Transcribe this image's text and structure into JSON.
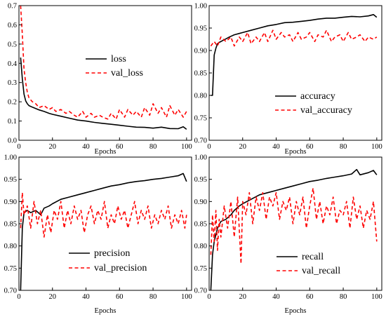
{
  "chart_data": [
    {
      "type": "line",
      "title": "",
      "xlabel": "Epochs",
      "ylabel": "",
      "xlim": [
        0,
        103
      ],
      "ylim": [
        0,
        0.7
      ],
      "xticks": [
        "0",
        "20",
        "40",
        "60",
        "80",
        "100"
      ],
      "yticks": [
        "0.0",
        "0.1",
        "0.2",
        "0.3",
        "0.4",
        "0.5",
        "0.6",
        "0.7"
      ],
      "grid": false,
      "legend_position": "center-right",
      "colors": {
        "train": "#000000",
        "val": "#ff0000"
      },
      "series": [
        {
          "name": "loss",
          "style": "solid",
          "x": [
            1,
            2,
            3,
            4,
            5,
            6,
            8,
            10,
            12,
            15,
            18,
            20,
            25,
            30,
            35,
            40,
            45,
            50,
            55,
            60,
            65,
            70,
            75,
            80,
            85,
            90,
            95,
            98,
            100
          ],
          "values": [
            0.43,
            0.32,
            0.24,
            0.205,
            0.19,
            0.18,
            0.172,
            0.165,
            0.158,
            0.15,
            0.14,
            0.135,
            0.125,
            0.115,
            0.105,
            0.1,
            0.093,
            0.088,
            0.083,
            0.078,
            0.073,
            0.068,
            0.067,
            0.063,
            0.068,
            0.061,
            0.06,
            0.07,
            0.057
          ]
        },
        {
          "name": "val_loss",
          "style": "dashed",
          "x": [
            1,
            2,
            3,
            4,
            5,
            6,
            8,
            10,
            12,
            15,
            18,
            20,
            22,
            25,
            28,
            30,
            33,
            35,
            38,
            40,
            43,
            45,
            48,
            50,
            53,
            55,
            58,
            60,
            63,
            65,
            68,
            70,
            73,
            75,
            78,
            80,
            83,
            85,
            88,
            90,
            93,
            95,
            98,
            100
          ],
          "values": [
            0.7,
            0.55,
            0.37,
            0.3,
            0.25,
            0.22,
            0.2,
            0.19,
            0.17,
            0.18,
            0.16,
            0.17,
            0.15,
            0.16,
            0.14,
            0.15,
            0.13,
            0.12,
            0.15,
            0.12,
            0.14,
            0.12,
            0.13,
            0.12,
            0.11,
            0.14,
            0.11,
            0.16,
            0.12,
            0.16,
            0.13,
            0.15,
            0.12,
            0.17,
            0.13,
            0.19,
            0.14,
            0.17,
            0.12,
            0.18,
            0.13,
            0.16,
            0.12,
            0.15
          ]
        }
      ]
    },
    {
      "type": "line",
      "title": "",
      "xlabel": "Epochs",
      "ylabel": "",
      "xlim": [
        0,
        103
      ],
      "ylim": [
        0.7,
        1.0
      ],
      "xticks": [
        "0",
        "20",
        "40",
        "60",
        "80",
        "100"
      ],
      "yticks": [
        "0.70",
        "0.75",
        "0.80",
        "0.85",
        "0.90",
        "0.95",
        "1.00"
      ],
      "grid": false,
      "legend_position": "bottom-right",
      "colors": {
        "train": "#000000",
        "val": "#ff0000"
      },
      "series": [
        {
          "name": "accuracy",
          "style": "solid",
          "x": [
            1,
            2,
            3,
            4,
            5,
            6,
            8,
            10,
            12,
            15,
            18,
            20,
            25,
            30,
            35,
            40,
            45,
            50,
            55,
            60,
            65,
            70,
            75,
            80,
            85,
            90,
            95,
            98,
            100
          ],
          "values": [
            0.8,
            0.8,
            0.89,
            0.905,
            0.915,
            0.918,
            0.922,
            0.926,
            0.93,
            0.935,
            0.938,
            0.94,
            0.945,
            0.95,
            0.955,
            0.958,
            0.962,
            0.963,
            0.965,
            0.967,
            0.97,
            0.972,
            0.972,
            0.974,
            0.976,
            0.975,
            0.977,
            0.98,
            0.974
          ]
        },
        {
          "name": "val_accuracy",
          "style": "dashed",
          "x": [
            1,
            2,
            3,
            5,
            7,
            10,
            13,
            15,
            18,
            20,
            23,
            25,
            28,
            30,
            33,
            35,
            38,
            40,
            43,
            45,
            48,
            50,
            53,
            55,
            58,
            60,
            63,
            65,
            68,
            70,
            73,
            75,
            78,
            80,
            83,
            85,
            88,
            90,
            93,
            95,
            98,
            100
          ],
          "values": [
            0.91,
            0.915,
            0.92,
            0.91,
            0.93,
            0.92,
            0.93,
            0.91,
            0.93,
            0.92,
            0.94,
            0.915,
            0.93,
            0.92,
            0.94,
            0.92,
            0.945,
            0.925,
            0.94,
            0.93,
            0.935,
            0.92,
            0.94,
            0.925,
            0.93,
            0.94,
            0.92,
            0.935,
            0.93,
            0.945,
            0.92,
            0.93,
            0.935,
            0.92,
            0.94,
            0.925,
            0.93,
            0.935,
            0.92,
            0.93,
            0.925,
            0.93
          ]
        }
      ]
    },
    {
      "type": "line",
      "title": "",
      "xlabel": "Epochs",
      "ylabel": "",
      "xlim": [
        0,
        103
      ],
      "ylim": [
        0.7,
        1.0
      ],
      "xticks": [
        "0",
        "20",
        "40",
        "60",
        "80",
        "100"
      ],
      "yticks": [
        "0.70",
        "0.75",
        "0.80",
        "0.85",
        "0.90",
        "0.95",
        "1.00"
      ],
      "grid": false,
      "legend_position": "bottom-right",
      "colors": {
        "train": "#000000",
        "val": "#ff0000"
      },
      "series": [
        {
          "name": "precision",
          "style": "solid",
          "x": [
            1,
            2,
            3,
            5,
            7,
            10,
            13,
            15,
            18,
            20,
            25,
            30,
            35,
            40,
            45,
            50,
            55,
            60,
            65,
            70,
            75,
            80,
            85,
            90,
            95,
            98,
            100
          ],
          "values": [
            0.7,
            0.84,
            0.875,
            0.88,
            0.875,
            0.88,
            0.87,
            0.885,
            0.89,
            0.895,
            0.905,
            0.91,
            0.915,
            0.92,
            0.925,
            0.93,
            0.935,
            0.938,
            0.942,
            0.945,
            0.947,
            0.95,
            0.952,
            0.955,
            0.958,
            0.963,
            0.945
          ]
        },
        {
          "name": "val_precision",
          "style": "dashed",
          "x": [
            1,
            2,
            3,
            5,
            7,
            9,
            11,
            13,
            15,
            17,
            19,
            21,
            23,
            25,
            27,
            29,
            31,
            33,
            35,
            37,
            39,
            41,
            43,
            45,
            47,
            49,
            51,
            53,
            55,
            57,
            59,
            61,
            63,
            65,
            67,
            69,
            71,
            73,
            75,
            77,
            79,
            81,
            83,
            85,
            87,
            89,
            91,
            93,
            95,
            97,
            99,
            100
          ],
          "values": [
            0.84,
            0.92,
            0.87,
            0.89,
            0.84,
            0.9,
            0.85,
            0.88,
            0.82,
            0.87,
            0.83,
            0.88,
            0.86,
            0.9,
            0.84,
            0.88,
            0.85,
            0.89,
            0.86,
            0.88,
            0.83,
            0.87,
            0.89,
            0.85,
            0.88,
            0.86,
            0.9,
            0.84,
            0.87,
            0.85,
            0.89,
            0.86,
            0.88,
            0.84,
            0.87,
            0.9,
            0.85,
            0.88,
            0.86,
            0.89,
            0.84,
            0.87,
            0.85,
            0.88,
            0.86,
            0.89,
            0.84,
            0.87,
            0.85,
            0.88,
            0.84,
            0.87
          ]
        }
      ]
    },
    {
      "type": "line",
      "title": "",
      "xlabel": "Epochs",
      "ylabel": "",
      "xlim": [
        0,
        103
      ],
      "ylim": [
        0.7,
        1.0
      ],
      "xticks": [
        "0",
        "20",
        "40",
        "60",
        "80",
        "100"
      ],
      "yticks": [
        "0.70",
        "0.75",
        "0.80",
        "0.85",
        "0.90",
        "0.95",
        "1.00"
      ],
      "grid": false,
      "legend_position": "bottom-right",
      "colors": {
        "train": "#000000",
        "val": "#ff0000"
      },
      "series": [
        {
          "name": "recall",
          "style": "solid",
          "x": [
            1,
            2,
            3,
            5,
            7,
            10,
            13,
            15,
            18,
            20,
            25,
            30,
            35,
            40,
            45,
            50,
            55,
            60,
            65,
            70,
            75,
            80,
            85,
            88,
            90,
            95,
            98,
            100
          ],
          "values": [
            0.7,
            0.78,
            0.81,
            0.84,
            0.855,
            0.86,
            0.87,
            0.88,
            0.89,
            0.895,
            0.905,
            0.915,
            0.92,
            0.925,
            0.93,
            0.935,
            0.94,
            0.945,
            0.948,
            0.952,
            0.955,
            0.958,
            0.962,
            0.972,
            0.96,
            0.965,
            0.97,
            0.96
          ]
        },
        {
          "name": "val_recall",
          "style": "dashed",
          "x": [
            1,
            2,
            3,
            4,
            5,
            6,
            7,
            9,
            11,
            13,
            15,
            17,
            19,
            20,
            22,
            24,
            26,
            28,
            30,
            32,
            34,
            36,
            38,
            40,
            42,
            44,
            46,
            48,
            50,
            52,
            54,
            56,
            58,
            60,
            62,
            64,
            66,
            68,
            70,
            72,
            74,
            76,
            78,
            80,
            82,
            84,
            86,
            88,
            90,
            92,
            94,
            96,
            98,
            100
          ],
          "values": [
            0.78,
            0.87,
            0.81,
            0.88,
            0.79,
            0.86,
            0.82,
            0.89,
            0.84,
            0.9,
            0.82,
            0.91,
            0.76,
            0.9,
            0.87,
            0.92,
            0.85,
            0.91,
            0.88,
            0.92,
            0.86,
            0.91,
            0.89,
            0.92,
            0.86,
            0.9,
            0.88,
            0.91,
            0.85,
            0.9,
            0.87,
            0.91,
            0.84,
            0.89,
            0.93,
            0.86,
            0.9,
            0.85,
            0.89,
            0.87,
            0.91,
            0.85,
            0.88,
            0.87,
            0.9,
            0.84,
            0.91,
            0.86,
            0.89,
            0.84,
            0.88,
            0.86,
            0.9,
            0.81
          ]
        }
      ]
    }
  ]
}
